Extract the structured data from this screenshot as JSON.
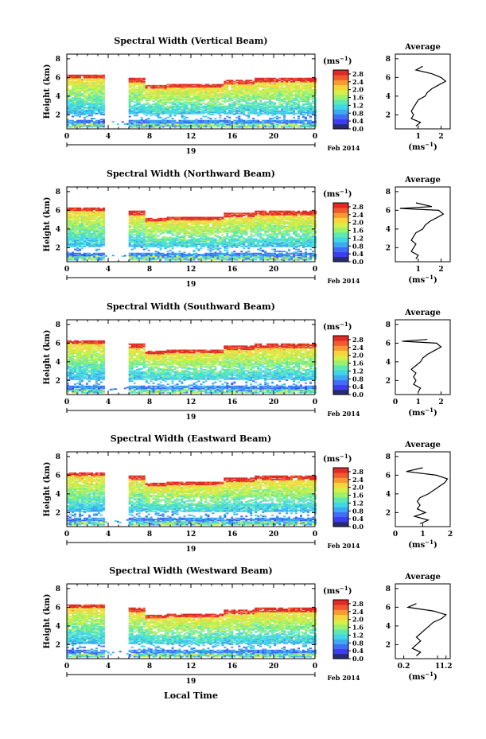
{
  "figure": {
    "date_label": "Feb 2014",
    "day_label": "19",
    "xlabel": "Local Time",
    "height_label": "Height (km)",
    "unit_label": "(ms",
    "unit_exp": "−1",
    "avg_title": "Average",
    "colors": [
      "#2a2a70",
      "#3d3df0",
      "#3f6ef5",
      "#3ea8f2",
      "#3fd6e8",
      "#5ee8b0",
      "#9cf06a",
      "#d8ee48",
      "#f8d43c",
      "#f89a32",
      "#f05a2e",
      "#e02a26"
    ]
  },
  "chart_data": [
    {
      "type": "heatmap",
      "title": "Spectral Width (Vertical Beam)",
      "xticks": [
        "0",
        "4",
        "8",
        "12",
        "16",
        "20",
        "0"
      ],
      "yticks": [
        "2",
        "4",
        "6",
        "8"
      ],
      "xlim": [
        0,
        24
      ],
      "ylim": [
        0.5,
        8.5
      ],
      "colorbar": {
        "ticks": [
          "0.0",
          "0.4",
          "0.8",
          "1.2",
          "1.6",
          "2.0",
          "2.4",
          "2.8"
        ],
        "range": [
          0,
          3.0
        ]
      },
      "profile": {
        "xticks": [
          "1",
          "2"
        ],
        "xlim": [
          0,
          2.4
        ],
        "ylim": [
          0.5,
          8.5
        ],
        "height": [
          0.8,
          1.2,
          1.6,
          2.0,
          2.4,
          2.8,
          3.2,
          3.6,
          4.0,
          4.4,
          4.8,
          5.2,
          5.6,
          6.0,
          6.4,
          6.8,
          7.2
        ],
        "width": [
          0.9,
          1.1,
          0.7,
          0.8,
          0.7,
          0.8,
          0.9,
          1.0,
          1.3,
          1.4,
          1.6,
          1.9,
          2.2,
          2.0,
          1.6,
          0.9,
          1.2
        ]
      }
    },
    {
      "type": "heatmap",
      "title": "Spectral Width (Northward Beam)",
      "xticks": [
        "0",
        "4",
        "8",
        "12",
        "16",
        "20",
        "0"
      ],
      "yticks": [
        "2",
        "4",
        "6",
        "8"
      ],
      "xlim": [
        0,
        24
      ],
      "ylim": [
        0.5,
        8.5
      ],
      "colorbar": {
        "ticks": [
          "0.0",
          "0.4",
          "0.8",
          "1.2",
          "1.6",
          "2.0",
          "2.4",
          "2.8"
        ],
        "range": [
          0,
          3.0
        ]
      },
      "profile": {
        "xticks": [
          "1",
          "2"
        ],
        "xlim": [
          0,
          2.4
        ],
        "ylim": [
          0.5,
          8.5
        ],
        "height": [
          0.8,
          1.2,
          1.6,
          2.0,
          2.4,
          2.8,
          3.2,
          3.6,
          4.0,
          4.4,
          4.8,
          5.2,
          5.6,
          6.0,
          6.2,
          6.4,
          6.8
        ],
        "width": [
          0.9,
          1.0,
          0.7,
          0.8,
          0.9,
          0.7,
          0.8,
          0.9,
          1.2,
          1.3,
          1.5,
          1.8,
          2.1,
          1.9,
          0.2,
          1.6,
          0.9
        ]
      }
    },
    {
      "type": "heatmap",
      "title": "Spectral Width (Southward Beam)",
      "xticks": [
        "0",
        "4",
        "8",
        "12",
        "16",
        "20",
        "0"
      ],
      "yticks": [
        "2",
        "4",
        "6",
        "8"
      ],
      "xlim": [
        0,
        24
      ],
      "ylim": [
        0.5,
        8.5
      ],
      "colorbar": {
        "ticks": [
          "0.0",
          "0.4",
          "0.8",
          "1.2",
          "1.6",
          "2.0",
          "2.4",
          "2.8"
        ],
        "range": [
          0,
          3.0
        ]
      },
      "profile": {
        "xticks": [
          "0",
          "1",
          "2"
        ],
        "xlim": [
          0,
          2.4
        ],
        "ylim": [
          0.5,
          8.5
        ],
        "height": [
          0.8,
          1.2,
          1.6,
          2.0,
          2.4,
          2.8,
          3.2,
          3.6,
          4.0,
          4.4,
          4.8,
          5.2,
          5.6,
          6.0,
          6.2,
          6.4
        ],
        "width": [
          1.0,
          1.1,
          0.8,
          0.9,
          0.8,
          0.9,
          0.7,
          0.9,
          1.1,
          1.2,
          1.4,
          1.7,
          2.0,
          1.8,
          0.3,
          1.4
        ]
      }
    },
    {
      "type": "heatmap",
      "title": "Spectral Width (Eastward Beam)",
      "xticks": [
        "0",
        "4",
        "8",
        "12",
        "16",
        "20",
        "0"
      ],
      "yticks": [
        "2",
        "4",
        "6",
        "8"
      ],
      "xlim": [
        0,
        24
      ],
      "ylim": [
        0.5,
        8.5
      ],
      "colorbar": {
        "ticks": [
          "0.0",
          "0.4",
          "0.8",
          "1.2",
          "1.6",
          "2.0",
          "2.4",
          "2.8"
        ],
        "range": [
          0,
          3.0
        ]
      },
      "profile": {
        "xticks": [
          "0",
          "1",
          "2"
        ],
        "xlim": [
          0,
          2.0
        ],
        "ylim": [
          0.5,
          8.5
        ],
        "height": [
          0.8,
          1.2,
          1.6,
          2.0,
          2.4,
          2.8,
          3.2,
          3.6,
          4.0,
          4.4,
          4.8,
          5.2,
          5.6,
          6.0,
          6.4,
          6.8
        ],
        "width": [
          0.9,
          1.2,
          0.7,
          1.1,
          0.8,
          0.9,
          0.8,
          0.9,
          1.2,
          1.4,
          1.6,
          1.8,
          1.9,
          1.5,
          0.4,
          1.0
        ]
      }
    },
    {
      "type": "heatmap",
      "title": "Spectral Width (Westward Beam)",
      "xticks": [
        "0",
        "4",
        "8",
        "12",
        "16",
        "20",
        "0"
      ],
      "yticks": [
        "2",
        "4",
        "6",
        "8"
      ],
      "xlim": [
        0,
        24
      ],
      "ylim": [
        0.5,
        8.5
      ],
      "colorbar": {
        "ticks": [
          "0.0",
          "0.4",
          "0.8",
          "1.2",
          "1.6",
          "2.0",
          "2.4",
          "2.8"
        ],
        "range": [
          0,
          3.0
        ]
      },
      "profile": {
        "xticks": [
          "0.2",
          "1",
          "1.2"
        ],
        "xlim": [
          0,
          1.3
        ],
        "ylim": [
          0.5,
          8.5
        ],
        "height": [
          0.8,
          1.2,
          1.6,
          2.0,
          2.4,
          2.8,
          3.2,
          3.6,
          4.0,
          4.4,
          4.8,
          5.2,
          5.6,
          6.0,
          6.4
        ],
        "width": [
          0.5,
          0.6,
          0.4,
          0.5,
          0.6,
          0.5,
          0.6,
          0.7,
          0.8,
          0.9,
          1.1,
          1.2,
          0.9,
          0.3,
          0.5
        ]
      }
    }
  ]
}
